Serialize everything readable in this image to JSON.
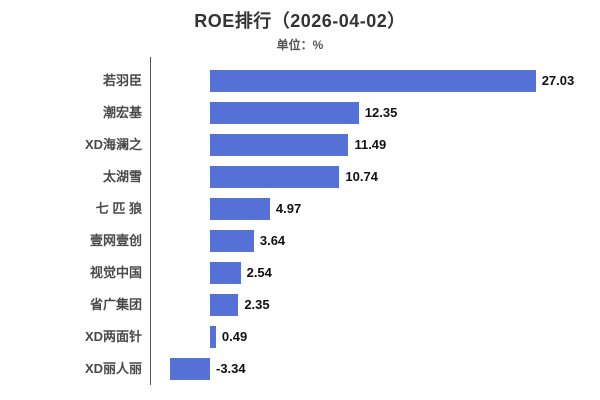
{
  "chart": {
    "background": "#ffffff",
    "bar_color": "#5571d6",
    "axis_color": "#555555",
    "title_color": "#333333",
    "subtitle_color": "#555555",
    "category_label_color": "#4a4a4a",
    "value_label_color": "#111111"
  },
  "chart_data": {
    "type": "bar",
    "orientation": "horizontal",
    "title": "ROE排行（2026-04-02）",
    "subtitle": "单位：%",
    "unit": "%",
    "categories": [
      "若羽臣",
      "潮宏基",
      "XD海澜之",
      "太湖雪",
      "七 匹 狼",
      "壹网壹创",
      "视觉中国",
      "省广集团",
      "XD两面针",
      "XD丽人丽"
    ],
    "values": [
      27.03,
      12.35,
      11.49,
      10.74,
      4.97,
      3.64,
      2.54,
      2.35,
      0.49,
      -3.34
    ],
    "value_label_decimals": 2,
    "value_labels_shown": true,
    "xlim": [
      -5,
      32
    ],
    "grid": false,
    "legend": false
  }
}
